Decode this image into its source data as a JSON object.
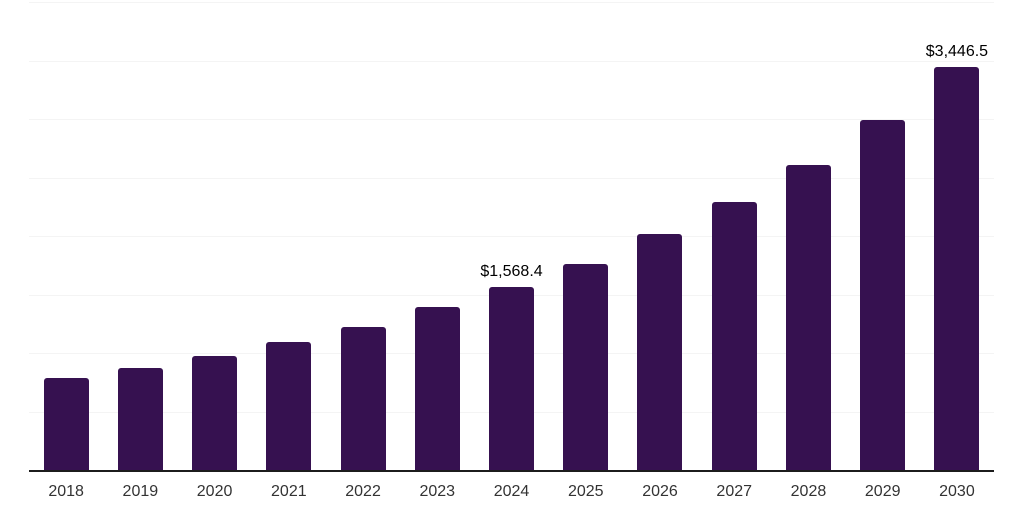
{
  "chart_data": {
    "type": "bar",
    "title": "",
    "xlabel": "",
    "ylabel": "",
    "categories": [
      "2018",
      "2019",
      "2020",
      "2021",
      "2022",
      "2023",
      "2024",
      "2025",
      "2026",
      "2027",
      "2028",
      "2029",
      "2030"
    ],
    "values": [
      785,
      870,
      975,
      1095,
      1220,
      1390,
      1568.4,
      1765,
      2015,
      2295,
      2610,
      2995,
      3446.5
    ],
    "data_labels": [
      "",
      "",
      "",
      "",
      "",
      "",
      "$1,568.4",
      "",
      "",
      "",
      "",
      "",
      "$3,446.5"
    ],
    "ylim": [
      0,
      4000
    ],
    "gridline_step": 500,
    "grid": "on",
    "legend": "none",
    "bar_color": "#361150",
    "gridline_color": "#f4f4f4",
    "axis_line_color": "#1c1c1c",
    "tick_label_color": "#333333",
    "data_label_color": "#000000",
    "background_color": "#ffffff"
  }
}
